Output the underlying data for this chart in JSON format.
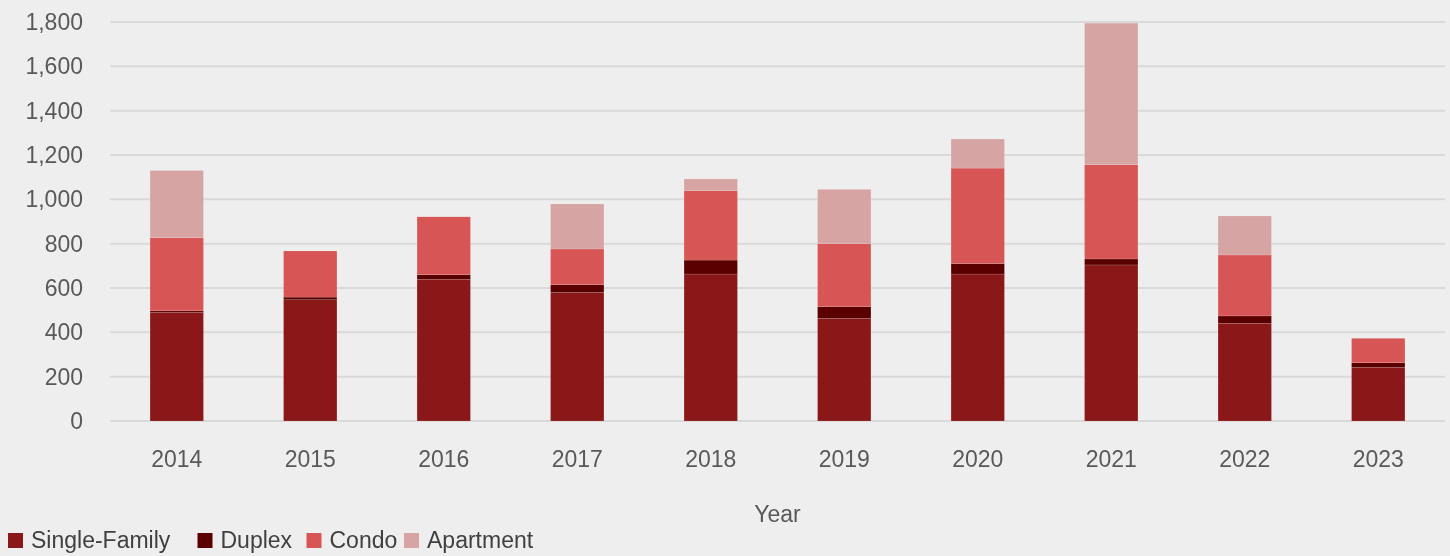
{
  "chart_data": {
    "type": "bar",
    "stacked": true,
    "xlabel": "Year",
    "categories": [
      "2014",
      "2015",
      "2016",
      "2017",
      "2018",
      "2019",
      "2020",
      "2021",
      "2022",
      "2023"
    ],
    "series": [
      {
        "name": "Single-Family",
        "color": "#8b1818",
        "values": [
          490,
          547,
          639,
          580,
          663,
          463,
          663,
          704,
          441,
          242
        ]
      },
      {
        "name": "Duplex",
        "color": "#5a0000",
        "values": [
          7,
          12,
          21,
          35,
          63,
          53,
          47,
          27,
          33,
          21
        ]
      },
      {
        "name": "Condo",
        "color": "#d75555",
        "values": [
          330,
          208,
          261,
          161,
          313,
          284,
          431,
          425,
          275,
          110
        ]
      },
      {
        "name": "Apartment",
        "color": "#d7a4a4",
        "values": [
          303,
          0,
          0,
          203,
          53,
          245,
          131,
          639,
          176,
          0
        ]
      }
    ],
    "ylim": [
      0,
      1800
    ],
    "yticks": [
      {
        "value": 0,
        "label": "0"
      },
      {
        "value": 200,
        "label": "200"
      },
      {
        "value": 400,
        "label": "400"
      },
      {
        "value": 600,
        "label": "600"
      },
      {
        "value": 800,
        "label": "800"
      },
      {
        "value": 1000,
        "label": "1,000"
      },
      {
        "value": 1200,
        "label": "1,200"
      },
      {
        "value": 1400,
        "label": "1,400"
      },
      {
        "value": 1600,
        "label": "1,600"
      },
      {
        "value": 1800,
        "label": "1,800"
      }
    ],
    "grid": "y",
    "legend": "bottom left"
  }
}
